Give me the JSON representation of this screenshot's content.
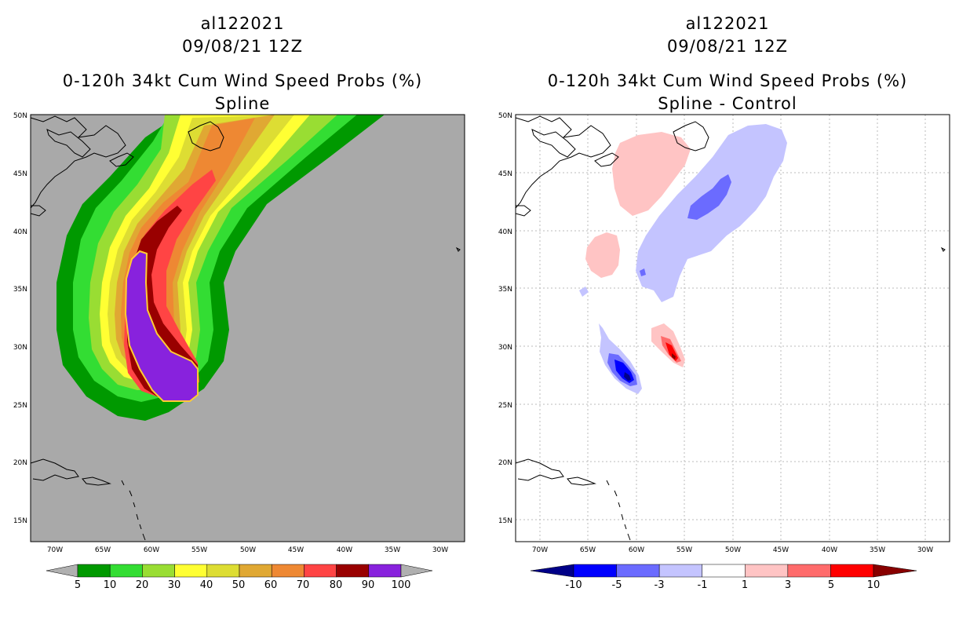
{
  "left": {
    "title_storm": "al122021",
    "title_time": "09/08/21 12Z",
    "title_product": "0-120h 34kt Cum Wind Speed Probs (%)",
    "title_method": "Spline",
    "lat_labels": [
      "50N",
      "45N",
      "40N",
      "35N",
      "30N",
      "25N",
      "20N",
      "15N"
    ],
    "lon_labels": [
      "70W",
      "65W",
      "60W",
      "55W",
      "50W",
      "45W",
      "40W",
      "35W",
      "30W"
    ],
    "colorbar": {
      "labels": [
        "5",
        "10",
        "20",
        "30",
        "40",
        "50",
        "60",
        "70",
        "80",
        "90",
        "100"
      ],
      "colors": [
        "#b0b0b0",
        "#009900",
        "#33dd33",
        "#99dd33",
        "#ffff33",
        "#dddd33",
        "#e0a833",
        "#ee8833",
        "#ff4444",
        "#990000",
        "#8822dd",
        "#b0b0b0"
      ]
    },
    "map_background": "#a9a9a9"
  },
  "right": {
    "title_storm": "al122021",
    "title_time": "09/08/21 12Z",
    "title_product": "0-120h 34kt Cum Wind Speed Probs (%)",
    "title_method": "Spline - Control",
    "lat_labels": [
      "50N",
      "45N",
      "40N",
      "35N",
      "30N",
      "25N",
      "20N",
      "15N"
    ],
    "lon_labels": [
      "70W",
      "65W",
      "60W",
      "55W",
      "50W",
      "45W",
      "40W",
      "35W",
      "30W"
    ],
    "colorbar": {
      "labels": [
        "-10",
        "-5",
        "-3",
        "-1",
        "1",
        "3",
        "5",
        "10"
      ],
      "colors": [
        "#000088",
        "#0000ff",
        "#6b6bff",
        "#c4c4ff",
        "#ffffff",
        "#ffc4c4",
        "#ff6b6b",
        "#ff0000",
        "#880000"
      ]
    },
    "map_background": "#ffffff"
  }
}
